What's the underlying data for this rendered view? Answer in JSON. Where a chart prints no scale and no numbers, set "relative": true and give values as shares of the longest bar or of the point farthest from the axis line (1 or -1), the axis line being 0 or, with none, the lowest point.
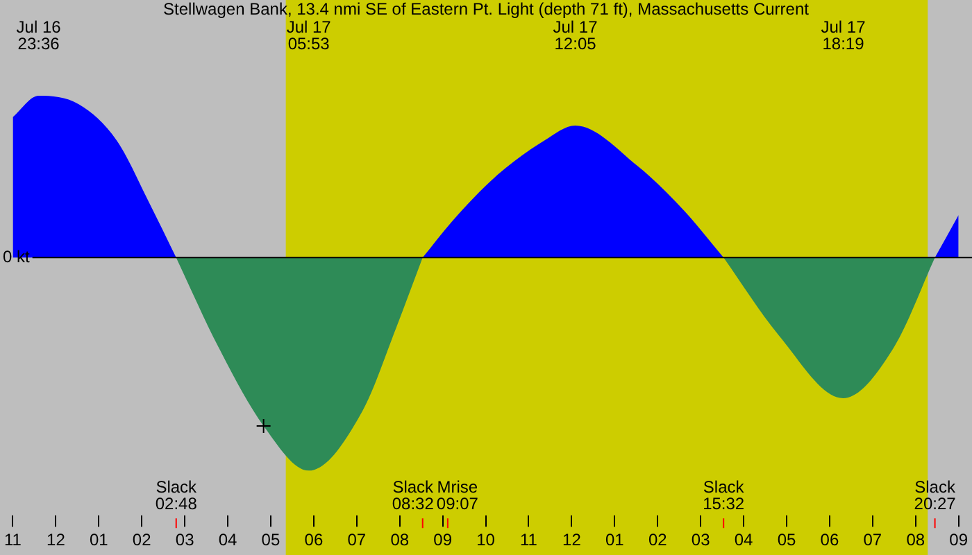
{
  "chart_data": {
    "type": "area",
    "title": "Stellwagen Bank, 13.4 nmi SE of Eastern Pt. Light (depth 71 ft), Massachusetts Current",
    "relative": true,
    "xlim": [
      "--07-16T23:00",
      "--07-17T21:00"
    ],
    "xticks": [
      {
        "value": "--07-16T23:00",
        "label": "11"
      },
      {
        "value": "--07-17T00:00",
        "label": "12"
      },
      {
        "value": "--07-17T01:00",
        "label": "01"
      },
      {
        "value": "--07-17T02:00",
        "label": "02"
      },
      {
        "value": "--07-17T03:00",
        "label": "03"
      },
      {
        "value": "--07-17T04:00",
        "label": "04"
      },
      {
        "value": "--07-17T05:00",
        "label": "05"
      },
      {
        "value": "--07-17T06:00",
        "label": "06"
      },
      {
        "value": "--07-17T07:00",
        "label": "07"
      },
      {
        "value": "--07-17T08:00",
        "label": "08"
      },
      {
        "value": "--07-17T09:00",
        "label": "09"
      },
      {
        "value": "--07-17T10:00",
        "label": "10"
      },
      {
        "value": "--07-17T11:00",
        "label": "11"
      },
      {
        "value": "--07-17T12:00",
        "label": "12"
      },
      {
        "value": "--07-17T13:00",
        "label": "01"
      },
      {
        "value": "--07-17T14:00",
        "label": "02"
      },
      {
        "value": "--07-17T15:00",
        "label": "03"
      },
      {
        "value": "--07-17T16:00",
        "label": "04"
      },
      {
        "value": "--07-17T17:00",
        "label": "05"
      },
      {
        "value": "--07-17T18:00",
        "label": "06"
      },
      {
        "value": "--07-17T19:00",
        "label": "07"
      },
      {
        "value": "--07-17T20:00",
        "label": "08"
      },
      {
        "value": "--07-17T21:00",
        "label": "09"
      }
    ],
    "series": [
      {
        "color": "#0000ff",
        "x": [
          "--07-16T23:00",
          "--07-16T23:36",
          "--07-17T00:32",
          "--07-17T01:25",
          "--07-17T02:10",
          "--07-17T02:48",
          "--07-17T05:42",
          "--07-17T08:32",
          "--07-17T09:13",
          "--07-17T10:17",
          "--07-17T11:22",
          "--07-17T12:05",
          "--07-17T13:32",
          "--07-17T14:37",
          "--07-17T15:32",
          "--07-17T18:00",
          "--07-17T20:27",
          "--07-17T21:00"
        ],
        "values": [
          0.66,
          0.76,
          0.72,
          0.55,
          0.26,
          0,
          null,
          0,
          0.17,
          0.39,
          0.55,
          0.62,
          0.43,
          0.22,
          0,
          null,
          0,
          0.2
        ]
      },
      {
        "color": "#2e8b57",
        "x": [
          "--07-17T02:48",
          "--07-17T03:47",
          "--07-17T04:50",
          "--07-17T05:53",
          "--07-17T07:08",
          "--07-17T07:55",
          "--07-17T08:32",
          "--07-17T12:00",
          "--07-17T15:32",
          "--07-17T16:48",
          "--07-17T18:19",
          "--07-17T19:30",
          "--07-17T20:27"
        ],
        "values": [
          0,
          -0.42,
          -0.79,
          -1,
          -0.72,
          -0.33,
          0,
          null,
          0,
          -0.36,
          -0.66,
          -0.42,
          0
        ]
      },
      {
        "type": "scatter",
        "color": "#000000",
        "marker": "cross",
        "x": [
          "--07-17T04:50"
        ],
        "values": [
          -0.79
        ]
      }
    ],
    "bands": [
      {
        "axis": "x",
        "from": "--07-17T05:21",
        "to": "--07-17T20:17",
        "color": "#cdcd00"
      }
    ],
    "ref_lines": [
      {
        "axis": "y",
        "value": 0,
        "label": "0 kt",
        "color": "#000000"
      },
      {
        "axis": "x",
        "value": "--07-17T02:48",
        "label": "Slack\n02:48",
        "color": "#ff0000"
      },
      {
        "axis": "x",
        "value": "--07-17T08:32",
        "label": "Slack\n08:32",
        "color": "#ff0000"
      },
      {
        "axis": "x",
        "value": "--07-17T09:07",
        "label": "Mrise\n09:07",
        "color": "#ff0000"
      },
      {
        "axis": "x",
        "value": "--07-17T15:32",
        "label": "Slack\n15:32",
        "color": "#ff0000"
      },
      {
        "axis": "x",
        "value": "--07-17T20:27",
        "label": "Slack\n20:27",
        "color": "#ff0000"
      }
    ],
    "annotations": [
      "Jul 16\n23:36",
      "Jul 17\n05:53",
      "Jul 17\n12:05",
      "Jul 17\n18:19"
    ],
    "grid": false
  }
}
